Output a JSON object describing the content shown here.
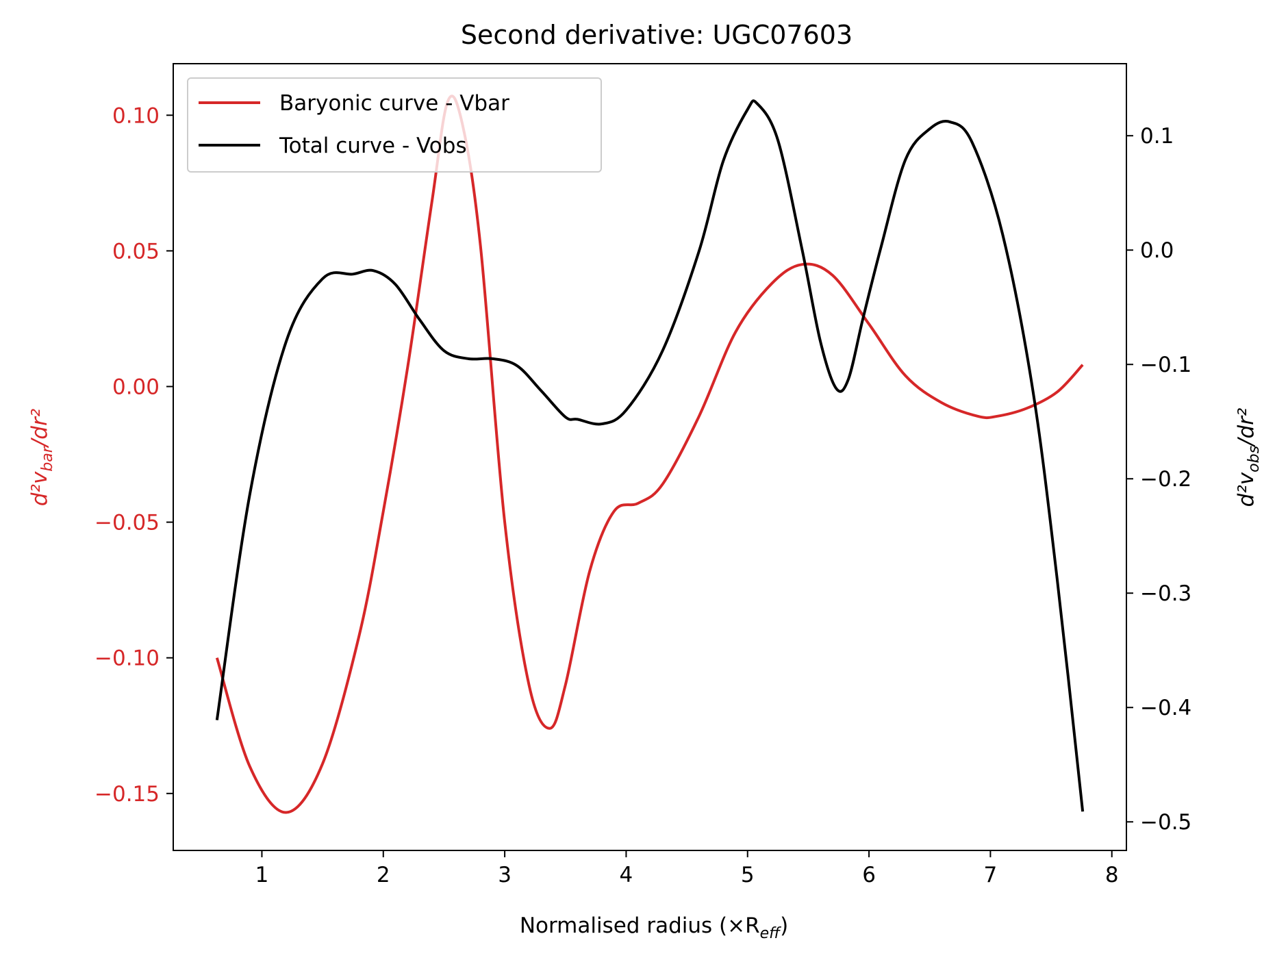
{
  "chart_data": {
    "type": "line",
    "title": "Second derivative: UGC07603",
    "xlabel": "Normalised radius (×R",
    "xlabel_sub": "eff",
    "xlabel_close": ")",
    "ylabel_left": "d²v",
    "ylabel_left_sub": "bar",
    "ylabel_left_tail": "/dr²",
    "ylabel_right": "d²v",
    "ylabel_right_sub": "obs",
    "ylabel_right_tail": "/dr²",
    "xlim": [
      0.27,
      8.12
    ],
    "ylim_left": [
      -0.171,
      0.119
    ],
    "ylim_right": [
      -0.525,
      0.163
    ],
    "x_ticks": [
      1,
      2,
      3,
      4,
      5,
      6,
      7,
      8
    ],
    "x_tick_labels": [
      "1",
      "2",
      "3",
      "4",
      "5",
      "6",
      "7",
      "8"
    ],
    "y_ticks_left": [
      0.1,
      0.05,
      0.0,
      -0.05,
      -0.1,
      -0.15
    ],
    "y_tick_labels_left": [
      "0.10",
      "0.05",
      "0.00",
      "−0.05",
      "−0.10",
      "−0.15"
    ],
    "y_ticks_right": [
      0.1,
      0.0,
      -0.1,
      -0.2,
      -0.3,
      -0.4,
      -0.5
    ],
    "y_tick_labels_right": [
      "0.1",
      "0.0",
      "−0.1",
      "−0.2",
      "−0.3",
      "−0.4",
      "−0.5"
    ],
    "legend_position": "upper-left",
    "left_axis_color": "#d62728",
    "right_axis_color": "#000000",
    "series": [
      {
        "name": "Baryonic curve - Vbar",
        "axis": "left",
        "color": "#d62728",
        "x": [
          0.63,
          0.9,
          1.2,
          1.5,
          1.8,
          2.0,
          2.2,
          2.4,
          2.53,
          2.65,
          2.8,
          3.0,
          3.2,
          3.37,
          3.5,
          3.7,
          3.9,
          4.1,
          4.3,
          4.6,
          4.9,
          5.2,
          5.45,
          5.7,
          6.0,
          6.3,
          6.6,
          6.9,
          7.05,
          7.3,
          7.55,
          7.76
        ],
        "y": [
          -0.1,
          -0.14,
          -0.157,
          -0.139,
          -0.092,
          -0.046,
          0.007,
          0.068,
          0.105,
          0.097,
          0.052,
          -0.05,
          -0.11,
          -0.126,
          -0.11,
          -0.068,
          -0.046,
          -0.043,
          -0.036,
          -0.011,
          0.02,
          0.038,
          0.045,
          0.041,
          0.023,
          0.004,
          -0.006,
          -0.011,
          -0.011,
          -0.008,
          -0.002,
          0.008
        ]
      },
      {
        "name": "Total curve - Vobs",
        "axis": "right",
        "color": "#000000",
        "x": [
          0.63,
          0.9,
          1.2,
          1.5,
          1.75,
          1.92,
          2.1,
          2.3,
          2.5,
          2.7,
          2.9,
          3.1,
          3.3,
          3.5,
          3.6,
          3.8,
          4.0,
          4.3,
          4.6,
          4.8,
          5.0,
          5.08,
          5.25,
          5.45,
          5.6,
          5.73,
          5.83,
          5.95,
          6.1,
          6.3,
          6.5,
          6.67,
          6.85,
          7.1,
          7.35,
          7.55,
          7.76
        ],
        "y": [
          -0.411,
          -0.214,
          -0.08,
          -0.025,
          -0.021,
          -0.018,
          -0.03,
          -0.061,
          -0.088,
          -0.095,
          -0.095,
          -0.101,
          -0.123,
          -0.146,
          -0.148,
          -0.152,
          -0.14,
          -0.088,
          -0.001,
          0.078,
          0.123,
          0.128,
          0.096,
          0.0,
          -0.08,
          -0.121,
          -0.113,
          -0.06,
          0.003,
          0.079,
          0.106,
          0.112,
          0.094,
          0.014,
          -0.123,
          -0.288,
          -0.491
        ]
      }
    ]
  }
}
